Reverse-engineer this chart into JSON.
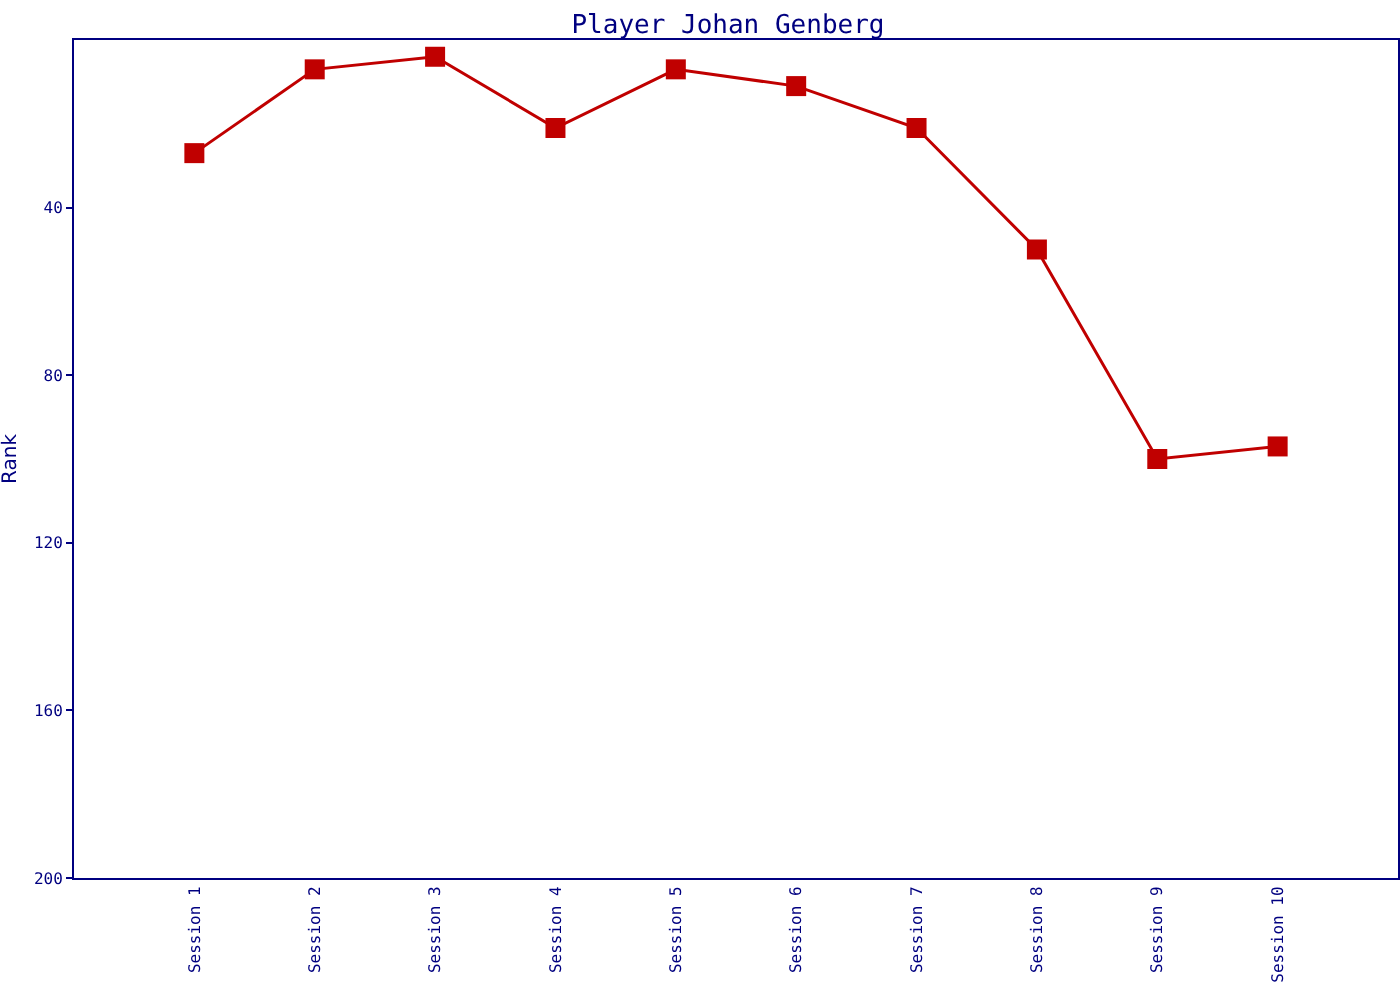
{
  "chart_data": {
    "type": "line",
    "title": "Player Johan Genberg",
    "ylabel": "Rank",
    "categories": [
      "Session 1",
      "Session 2",
      "Session 3",
      "Session 4",
      "Session 5",
      "Session 6",
      "Session 7",
      "Session 8",
      "Session 9",
      "Session 10"
    ],
    "series": [
      {
        "color": "#c00000",
        "values": [
          27,
          7,
          4,
          21,
          7,
          11,
          21,
          50,
          100,
          97
        ]
      }
    ],
    "ylim": [
      200,
      0
    ],
    "yticks": [
      40,
      80,
      120,
      160,
      200
    ],
    "grid": false,
    "legend": false,
    "marker": "square",
    "line_style": "solid"
  }
}
